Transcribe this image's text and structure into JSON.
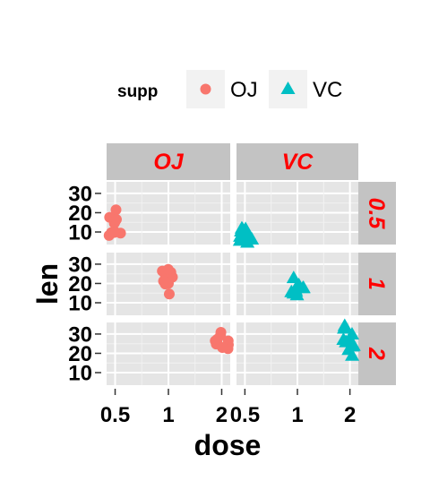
{
  "legend": {
    "title": "supp",
    "items": [
      {
        "label": "OJ",
        "shape": "circle",
        "color": "#F8766D"
      },
      {
        "label": "VC",
        "shape": "triangle",
        "color": "#00BFC4"
      }
    ]
  },
  "chart_data": {
    "type": "scatter",
    "xlabel": "dose",
    "ylabel": "len",
    "x_categories": [
      "0.5",
      "1",
      "2"
    ],
    "facet_cols": [
      "OJ",
      "VC"
    ],
    "facet_rows": [
      "0.5",
      "1",
      "2"
    ],
    "y_ticks": [
      10,
      20,
      30
    ],
    "ylim": [
      3.5,
      36
    ],
    "panel_background": "#e5e5e5",
    "strip_background": "#c3c3c3",
    "strip_text_color": "#ff0000",
    "series": [
      {
        "name": "OJ",
        "marker": "circle",
        "color": "#F8766D",
        "points": [
          {
            "row": "0.5",
            "x": "0.5",
            "y": 15.2
          },
          {
            "row": "0.5",
            "x": "0.5",
            "y": 21.5
          },
          {
            "row": "0.5",
            "x": "0.5",
            "y": 17.6
          },
          {
            "row": "0.5",
            "x": "0.5",
            "y": 9.7
          },
          {
            "row": "0.5",
            "x": "0.5",
            "y": 14.5
          },
          {
            "row": "0.5",
            "x": "0.5",
            "y": 10.0
          },
          {
            "row": "0.5",
            "x": "0.5",
            "y": 8.2
          },
          {
            "row": "0.5",
            "x": "0.5",
            "y": 9.4
          },
          {
            "row": "0.5",
            "x": "0.5",
            "y": 16.5
          },
          {
            "row": "0.5",
            "x": "0.5",
            "y": 9.7
          },
          {
            "row": "1",
            "x": "1",
            "y": 19.7
          },
          {
            "row": "1",
            "x": "1",
            "y": 23.3
          },
          {
            "row": "1",
            "x": "1",
            "y": 23.6
          },
          {
            "row": "1",
            "x": "1",
            "y": 26.4
          },
          {
            "row": "1",
            "x": "1",
            "y": 20.0
          },
          {
            "row": "1",
            "x": "1",
            "y": 25.2
          },
          {
            "row": "1",
            "x": "1",
            "y": 25.8
          },
          {
            "row": "1",
            "x": "1",
            "y": 21.2
          },
          {
            "row": "1",
            "x": "1",
            "y": 14.5
          },
          {
            "row": "1",
            "x": "1",
            "y": 27.3
          },
          {
            "row": "2",
            "x": "2",
            "y": 25.5
          },
          {
            "row": "2",
            "x": "2",
            "y": 26.4
          },
          {
            "row": "2",
            "x": "2",
            "y": 22.4
          },
          {
            "row": "2",
            "x": "2",
            "y": 24.5
          },
          {
            "row": "2",
            "x": "2",
            "y": 24.8
          },
          {
            "row": "2",
            "x": "2",
            "y": 30.9
          },
          {
            "row": "2",
            "x": "2",
            "y": 26.4
          },
          {
            "row": "2",
            "x": "2",
            "y": 27.3
          },
          {
            "row": "2",
            "x": "2",
            "y": 29.4
          },
          {
            "row": "2",
            "x": "2",
            "y": 23.0
          }
        ]
      },
      {
        "name": "VC",
        "marker": "triangle",
        "color": "#00BFC4",
        "points": [
          {
            "row": "0.5",
            "x": "0.5",
            "y": 4.2
          },
          {
            "row": "0.5",
            "x": "0.5",
            "y": 11.5
          },
          {
            "row": "0.5",
            "x": "0.5",
            "y": 7.3
          },
          {
            "row": "0.5",
            "x": "0.5",
            "y": 5.8
          },
          {
            "row": "0.5",
            "x": "0.5",
            "y": 6.4
          },
          {
            "row": "0.5",
            "x": "0.5",
            "y": 10.0
          },
          {
            "row": "0.5",
            "x": "0.5",
            "y": 11.2
          },
          {
            "row": "0.5",
            "x": "0.5",
            "y": 11.2
          },
          {
            "row": "0.5",
            "x": "0.5",
            "y": 5.2
          },
          {
            "row": "0.5",
            "x": "0.5",
            "y": 7.0
          },
          {
            "row": "1",
            "x": "1",
            "y": 16.5
          },
          {
            "row": "1",
            "x": "1",
            "y": 16.5
          },
          {
            "row": "1",
            "x": "1",
            "y": 15.2
          },
          {
            "row": "1",
            "x": "1",
            "y": 17.3
          },
          {
            "row": "1",
            "x": "1",
            "y": 22.5
          },
          {
            "row": "1",
            "x": "1",
            "y": 17.3
          },
          {
            "row": "1",
            "x": "1",
            "y": 13.6
          },
          {
            "row": "1",
            "x": "1",
            "y": 14.5
          },
          {
            "row": "1",
            "x": "1",
            "y": 18.8
          },
          {
            "row": "1",
            "x": "1",
            "y": 15.5
          },
          {
            "row": "2",
            "x": "2",
            "y": 23.6
          },
          {
            "row": "2",
            "x": "2",
            "y": 18.5
          },
          {
            "row": "2",
            "x": "2",
            "y": 33.9
          },
          {
            "row": "2",
            "x": "2",
            "y": 25.5
          },
          {
            "row": "2",
            "x": "2",
            "y": 26.4
          },
          {
            "row": "2",
            "x": "2",
            "y": 32.5
          },
          {
            "row": "2",
            "x": "2",
            "y": 26.7
          },
          {
            "row": "2",
            "x": "2",
            "y": 21.5
          },
          {
            "row": "2",
            "x": "2",
            "y": 23.3
          },
          {
            "row": "2",
            "x": "2",
            "y": 29.5
          }
        ]
      }
    ]
  }
}
